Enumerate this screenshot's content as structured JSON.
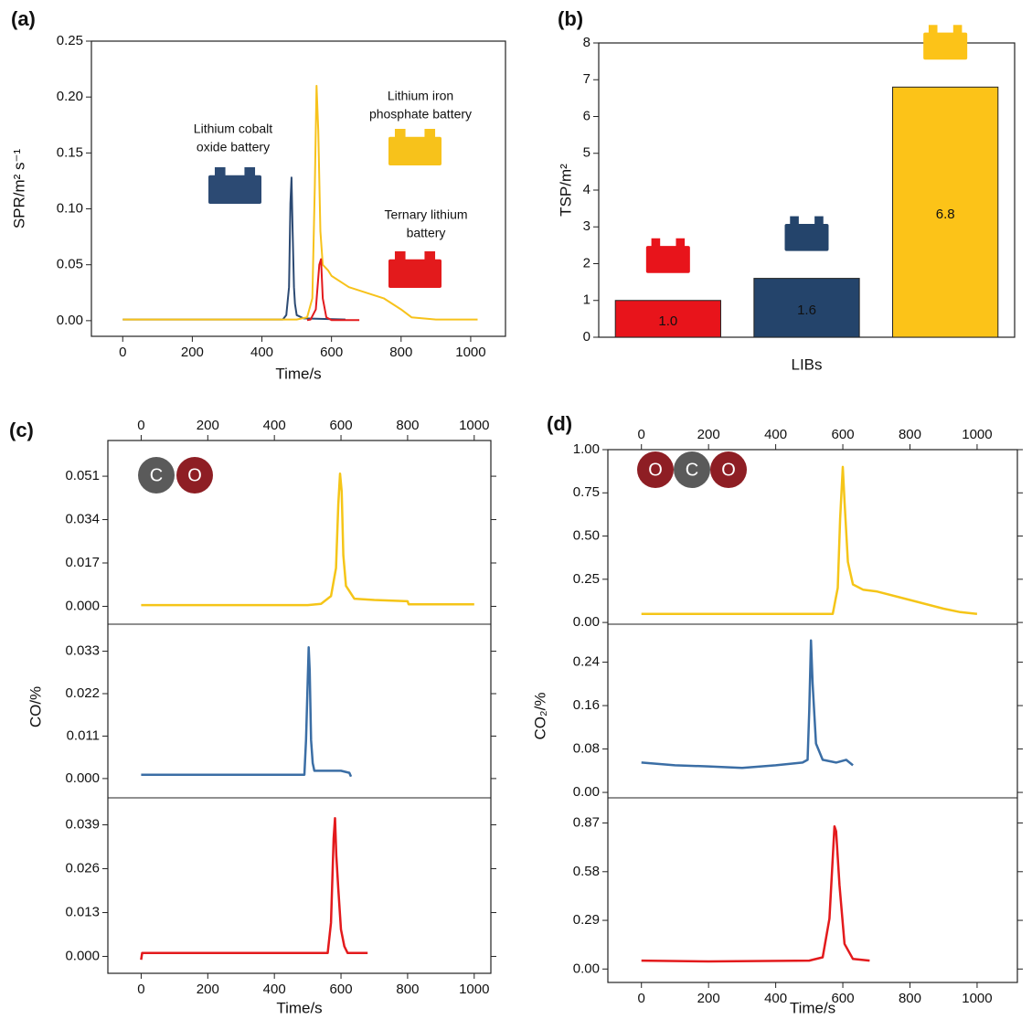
{
  "chart_data": [
    {
      "type": "line",
      "label": "(a)",
      "xlabel": "Time/s",
      "ylabel": "SPR/m² s⁻¹",
      "xlim": [
        -90,
        1100
      ],
      "xticks": [
        0,
        200,
        400,
        600,
        800,
        1000
      ],
      "ylim": [
        -0.014,
        0.25
      ],
      "yticks": [
        {
          "value": 0,
          "label": "0.00"
        },
        {
          "value": 0.05,
          "label": "0.05"
        },
        {
          "value": 0.1,
          "label": "0.10"
        },
        {
          "value": 0.15,
          "label": "0.15"
        },
        {
          "value": 0.2,
          "label": "0.20"
        },
        {
          "value": 0.25,
          "label": "0.25"
        }
      ],
      "series": [
        {
          "name": [
            "Lithium cobalt",
            "oxide battery"
          ],
          "color": "#2c4a73",
          "x": [
            0,
            200,
            400,
            460,
            470,
            478,
            482,
            485,
            488,
            492,
            495,
            500,
            520,
            640
          ],
          "values": [
            0.001,
            0.001,
            0.001,
            0.001,
            0.005,
            0.03,
            0.105,
            0.128,
            0.085,
            0.03,
            0.015,
            0.005,
            0.002,
            0.001
          ]
        },
        {
          "name": [
            "Lithium iron",
            "phosphate battery"
          ],
          "color": "#f7c21b",
          "x": [
            0,
            200,
            400,
            500,
            530,
            545,
            552,
            557,
            562,
            568,
            575,
            590,
            600,
            650,
            700,
            750,
            800,
            830,
            900,
            1020
          ],
          "values": [
            0.001,
            0.001,
            0.001,
            0.001,
            0.003,
            0.02,
            0.12,
            0.21,
            0.17,
            0.08,
            0.05,
            0.045,
            0.04,
            0.03,
            0.025,
            0.02,
            0.01,
            0.003,
            0.001,
            0.001
          ]
        },
        {
          "name": [
            "Ternary lithium",
            "battery"
          ],
          "color": "#e31a1c",
          "x": [
            530,
            540,
            555,
            565,
            570,
            575,
            585,
            600,
            680
          ],
          "values": [
            0.0005,
            0.001,
            0.01,
            0.05,
            0.055,
            0.02,
            0.003,
            0.0005,
            0.0005
          ]
        }
      ]
    },
    {
      "type": "bar",
      "label": "(b)",
      "xlabel": "LIBs",
      "ylabel": "TSP/m²",
      "categories": [
        null,
        null,
        null
      ],
      "values": [
        1.0,
        1.6,
        6.8
      ],
      "value_labels": [
        "1.0",
        "1.6",
        "6.8"
      ],
      "colors": [
        "#e8141b",
        "#24446b",
        "#fcc318"
      ],
      "ylim": [
        0,
        8
      ],
      "yticks": [
        0,
        1,
        2,
        3,
        4,
        5,
        6,
        7,
        8
      ]
    },
    {
      "type": "stacked-line",
      "label": "(c)",
      "xlabel": "Time/s",
      "ylabel": "CO/%",
      "molecule": [
        "C",
        "O"
      ],
      "xlim": [
        -100,
        1050
      ],
      "xticks": [
        0,
        200,
        400,
        600,
        800,
        1000
      ],
      "panels": [
        {
          "ylim": [
            -0.007,
            0.065
          ],
          "yticks": [
            {
              "value": 0,
              "label": "0.000"
            },
            {
              "value": 0.017,
              "label": "0.017"
            },
            {
              "value": 0.034,
              "label": "0.034"
            },
            {
              "value": 0.051,
              "label": "0.051"
            }
          ],
          "series": [
            {
              "color": "#f5c518",
              "x": [
                0,
                500,
                540,
                570,
                585,
                592,
                597,
                602,
                607,
                615,
                640,
                700,
                800,
                803,
                1000
              ],
              "values": [
                0.0005,
                0.0005,
                0.001,
                0.004,
                0.015,
                0.04,
                0.052,
                0.045,
                0.02,
                0.008,
                0.003,
                0.0025,
                0.002,
                0.0008,
                0.0008
              ]
            }
          ]
        },
        {
          "ylim": [
            -0.005,
            0.04
          ],
          "yticks": [
            {
              "value": 0,
              "label": "0.000"
            },
            {
              "value": 0.011,
              "label": "0.011"
            },
            {
              "value": 0.022,
              "label": "0.022"
            },
            {
              "value": 0.033,
              "label": "0.033"
            }
          ],
          "series": [
            {
              "color": "#3b6ea5",
              "x": [
                0,
                490,
                495,
                500,
                503,
                506,
                510,
                515,
                520,
                600,
                625,
                630
              ],
              "values": [
                0.001,
                0.001,
                0.01,
                0.025,
                0.034,
                0.028,
                0.01,
                0.004,
                0.002,
                0.002,
                0.0015,
                0.0005
              ]
            }
          ]
        },
        {
          "ylim": [
            -0.005,
            0.047
          ],
          "yticks": [
            {
              "value": 0,
              "label": "0.000"
            },
            {
              "value": 0.013,
              "label": "0.013"
            },
            {
              "value": 0.026,
              "label": "0.026"
            },
            {
              "value": 0.039,
              "label": "0.039"
            }
          ],
          "series": [
            {
              "color": "#e31a1c",
              "x": [
                0,
                3,
                480,
                560,
                570,
                578,
                582,
                586,
                592,
                600,
                610,
                620,
                680
              ],
              "values": [
                -0.001,
                0.001,
                0.001,
                0.001,
                0.01,
                0.035,
                0.041,
                0.03,
                0.02,
                0.008,
                0.003,
                0.001,
                0.001
              ]
            }
          ]
        }
      ]
    },
    {
      "type": "stacked-line",
      "label": "(d)",
      "xlabel": "Time/s",
      "ylabel": "CO₂/%",
      "molecule": [
        "O",
        "C",
        "O"
      ],
      "xlim": [
        -100,
        1120
      ],
      "xticks": [
        0,
        200,
        400,
        600,
        800,
        1000
      ],
      "panels": [
        {
          "ylim": [
            -0.01,
            1.0
          ],
          "yticks": [
            {
              "value": 0,
              "label": "0.00"
            },
            {
              "value": 0.25,
              "label": "0.25"
            },
            {
              "value": 0.5,
              "label": "0.50"
            },
            {
              "value": 0.75,
              "label": "0.75"
            },
            {
              "value": 1,
              "label": "1.00"
            }
          ],
          "series": [
            {
              "color": "#f5c518",
              "x": [
                0,
                500,
                570,
                585,
                592,
                600,
                605,
                615,
                630,
                660,
                700,
                800,
                900,
                950,
                1000
              ],
              "values": [
                0.05,
                0.05,
                0.05,
                0.2,
                0.6,
                0.9,
                0.7,
                0.35,
                0.22,
                0.19,
                0.18,
                0.13,
                0.08,
                0.06,
                0.05
              ]
            }
          ]
        },
        {
          "ylim": [
            -0.01,
            0.31
          ],
          "yticks": [
            {
              "value": 0,
              "label": "0.00"
            },
            {
              "value": 0.08,
              "label": "0.08"
            },
            {
              "value": 0.16,
              "label": "0.16"
            },
            {
              "value": 0.24,
              "label": "0.24"
            }
          ],
          "series": [
            {
              "color": "#3b6ea5",
              "x": [
                0,
                100,
                200,
                300,
                400,
                480,
                495,
                500,
                505,
                510,
                520,
                540,
                580,
                610,
                630
              ],
              "values": [
                0.055,
                0.05,
                0.048,
                0.045,
                0.05,
                0.055,
                0.06,
                0.15,
                0.28,
                0.2,
                0.09,
                0.06,
                0.055,
                0.06,
                0.05
              ]
            }
          ]
        },
        {
          "ylim": [
            -0.08,
            1.02
          ],
          "yticks": [
            {
              "value": 0,
              "label": "0.00"
            },
            {
              "value": 0.29,
              "label": "0.29"
            },
            {
              "value": 0.58,
              "label": "0.58"
            },
            {
              "value": 0.87,
              "label": "0.87"
            }
          ],
          "series": [
            {
              "color": "#e31a1c",
              "x": [
                0,
                200,
                500,
                540,
                560,
                575,
                580,
                590,
                605,
                630,
                680
              ],
              "values": [
                0.05,
                0.045,
                0.05,
                0.07,
                0.3,
                0.85,
                0.82,
                0.5,
                0.15,
                0.06,
                0.05
              ]
            }
          ]
        }
      ]
    }
  ]
}
